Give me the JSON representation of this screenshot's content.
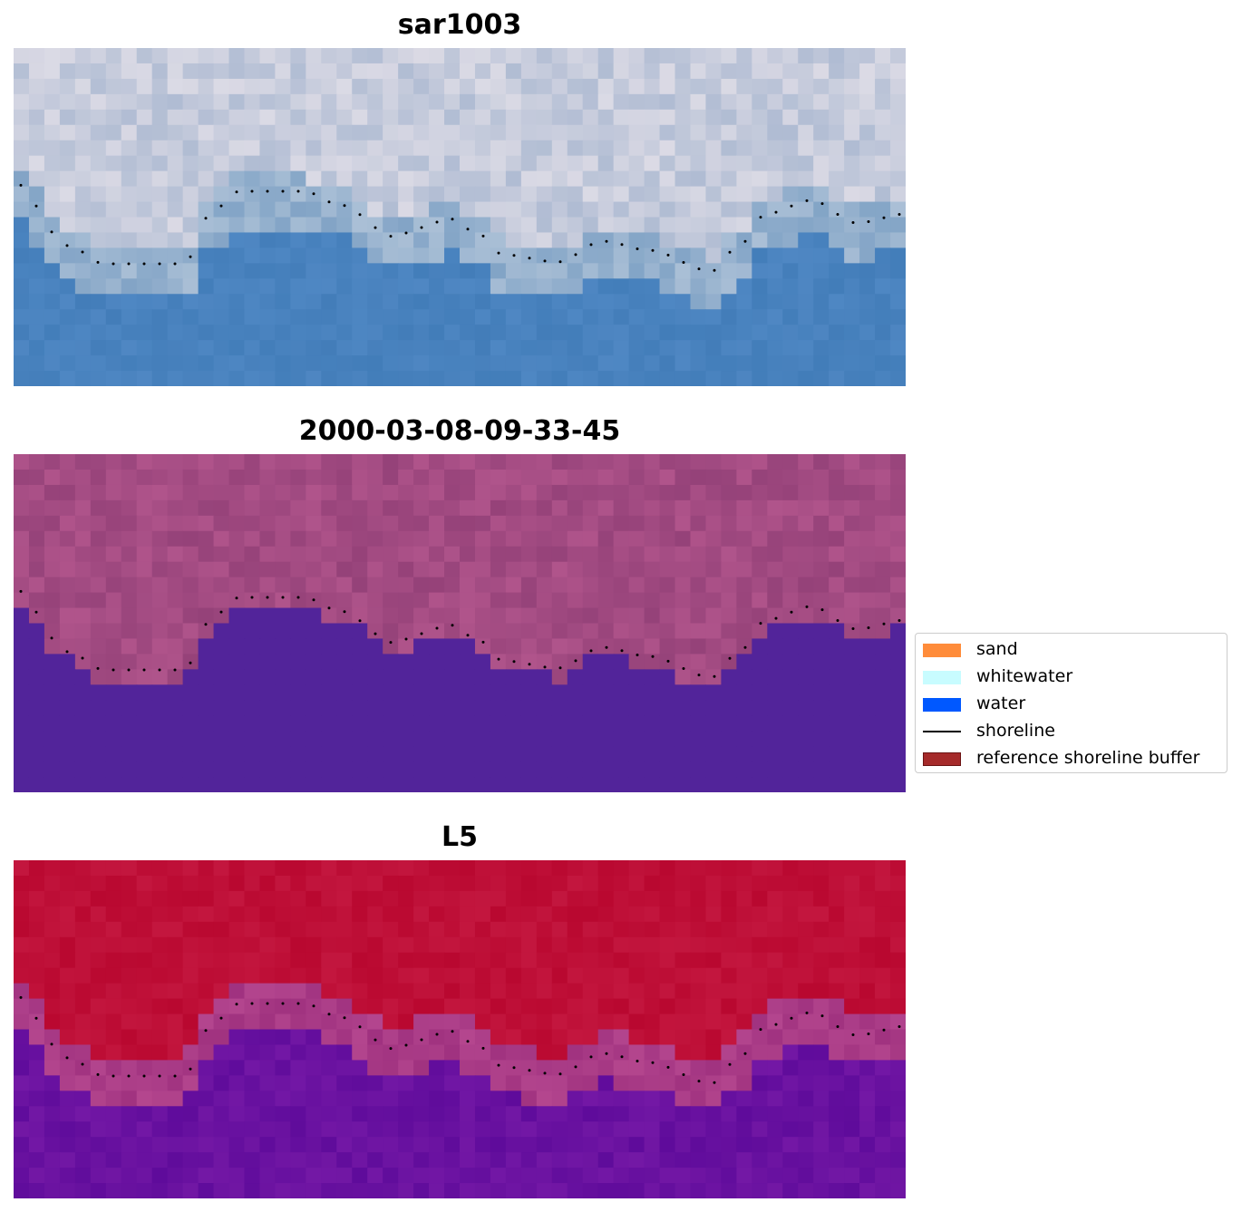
{
  "panels": [
    {
      "title": "sar1003",
      "palette": "rgb"
    },
    {
      "title": "2000-03-08-09-33-45",
      "palette": "class"
    },
    {
      "title": "L5",
      "palette": "index"
    }
  ],
  "legend": {
    "items": [
      {
        "label": "sand",
        "kind": "patch",
        "color": "#ff8c3a"
      },
      {
        "label": "whitewater",
        "kind": "patch",
        "color": "#c8fcff"
      },
      {
        "label": "water",
        "kind": "patch",
        "color": "#0058ff"
      },
      {
        "label": "shoreline",
        "kind": "line",
        "color": "#000000"
      },
      {
        "label": "reference shoreline buffer",
        "kind": "patch",
        "color": "#a52a2a"
      }
    ]
  },
  "colors": {
    "class_land": "#b0578a",
    "class_water": "#52249a",
    "index_high": "#b8002e",
    "index_low": "#5a0a9c"
  }
}
